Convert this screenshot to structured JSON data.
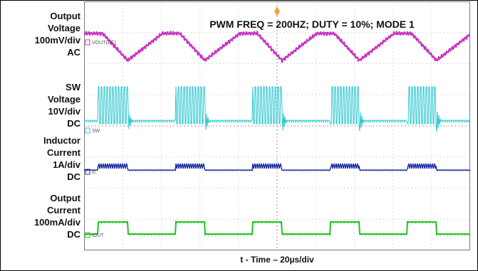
{
  "chart_data": {
    "type": "line",
    "title": "PWM FREQ = 200HZ; DUTY = 10%; MODE 1",
    "xlabel": "t - Time – 20µs/div",
    "time_scale": "20µs/div",
    "x_divisions": 10,
    "y_divisions": 8,
    "cycles_shown": 5,
    "channels": [
      {
        "id": "vout",
        "marker": "VOUT(AC)",
        "label_lines": [
          "Output",
          "Voltage",
          "100mV/div",
          "AC"
        ],
        "color": "#c736c3"
      },
      {
        "id": "sw",
        "marker": "SW",
        "label_lines": [
          "SW",
          "Voltage",
          "10V/div",
          "DC"
        ],
        "color": "#2ac6cf"
      },
      {
        "id": "il",
        "marker": "IL",
        "label_lines": [
          "Inductor",
          "Current",
          "1A/div",
          "DC"
        ],
        "color": "#1a2aa6"
      },
      {
        "id": "iout",
        "marker": "IOUT",
        "label_lines": [
          "Output",
          "Current",
          "100mA/div",
          "DC"
        ],
        "color": "#1fc41f"
      }
    ]
  }
}
